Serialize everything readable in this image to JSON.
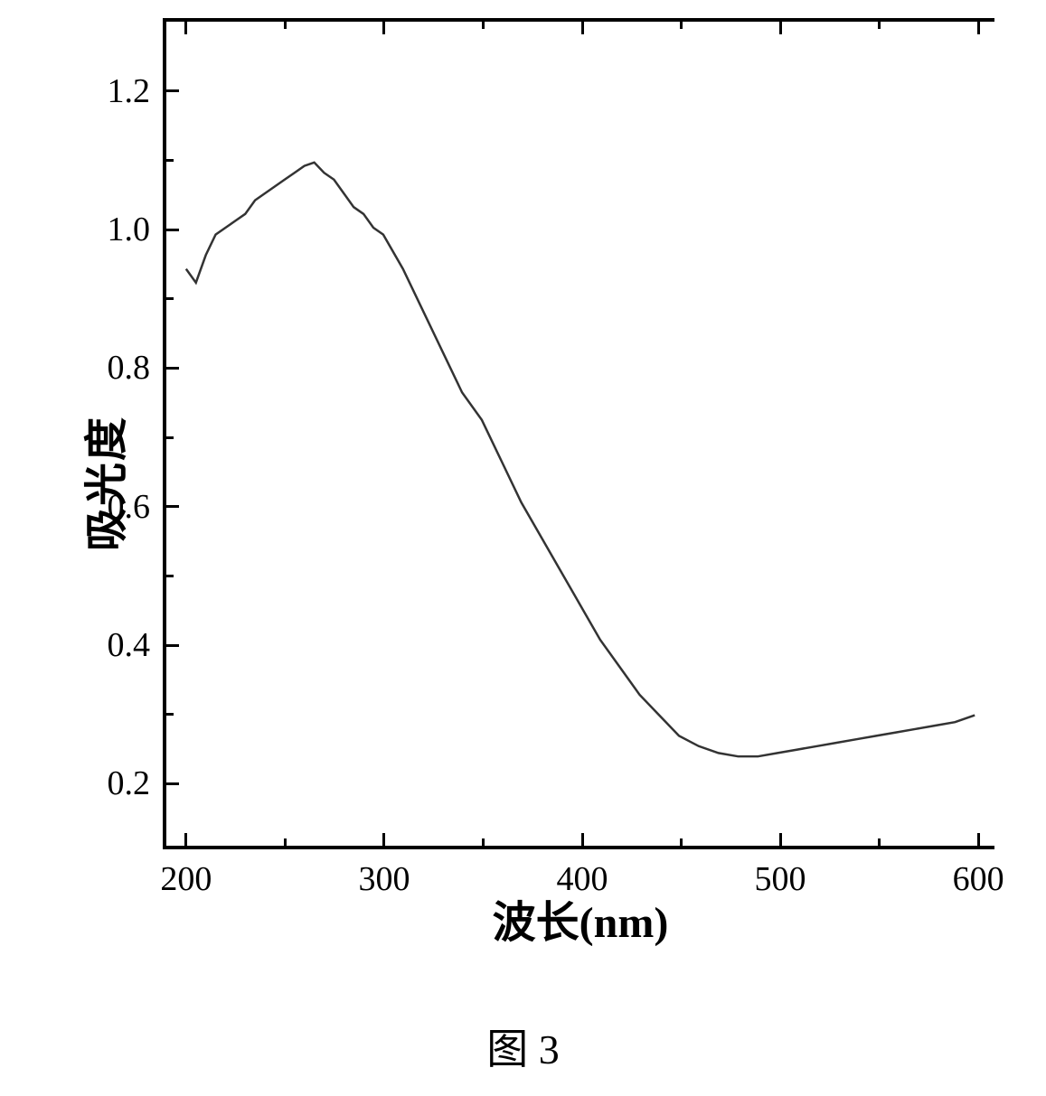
{
  "chart": {
    "type": "line",
    "xlabel": "波长(nm)",
    "ylabel": "吸光度",
    "caption": "图 3",
    "xlim": [
      190,
      610
    ],
    "ylim": [
      0.1,
      1.3
    ],
    "x_tick_major": [
      200,
      300,
      400,
      500,
      600
    ],
    "x_tick_major_labels": [
      "200",
      "300",
      "400",
      "500",
      "600"
    ],
    "x_tick_minor": [
      250,
      350,
      450,
      550
    ],
    "y_tick_major": [
      0.2,
      0.4,
      0.6,
      0.8,
      1.0,
      1.2
    ],
    "y_tick_major_labels": [
      "0.2",
      "0.4",
      "0.6",
      "0.8",
      "1.0",
      "1.2"
    ],
    "y_tick_minor": [
      0.3,
      0.5,
      0.7,
      0.9,
      1.1
    ],
    "line_color": "#333333",
    "line_width": 2.5,
    "background_color": "#ffffff",
    "axis_color": "#000000",
    "tick_fontsize": 38,
    "label_fontsize": 48,
    "caption_fontsize": 46,
    "series": [
      {
        "x": 200,
        "y": 0.94
      },
      {
        "x": 205,
        "y": 0.92
      },
      {
        "x": 210,
        "y": 0.96
      },
      {
        "x": 215,
        "y": 0.99
      },
      {
        "x": 220,
        "y": 1.0
      },
      {
        "x": 225,
        "y": 1.01
      },
      {
        "x": 230,
        "y": 1.02
      },
      {
        "x": 235,
        "y": 1.04
      },
      {
        "x": 240,
        "y": 1.05
      },
      {
        "x": 245,
        "y": 1.06
      },
      {
        "x": 250,
        "y": 1.07
      },
      {
        "x": 255,
        "y": 1.08
      },
      {
        "x": 260,
        "y": 1.09
      },
      {
        "x": 265,
        "y": 1.095
      },
      {
        "x": 270,
        "y": 1.08
      },
      {
        "x": 275,
        "y": 1.07
      },
      {
        "x": 280,
        "y": 1.05
      },
      {
        "x": 285,
        "y": 1.03
      },
      {
        "x": 290,
        "y": 1.02
      },
      {
        "x": 295,
        "y": 1.0
      },
      {
        "x": 300,
        "y": 0.99
      },
      {
        "x": 310,
        "y": 0.94
      },
      {
        "x": 320,
        "y": 0.88
      },
      {
        "x": 330,
        "y": 0.82
      },
      {
        "x": 340,
        "y": 0.76
      },
      {
        "x": 350,
        "y": 0.72
      },
      {
        "x": 360,
        "y": 0.66
      },
      {
        "x": 370,
        "y": 0.6
      },
      {
        "x": 380,
        "y": 0.55
      },
      {
        "x": 390,
        "y": 0.5
      },
      {
        "x": 400,
        "y": 0.45
      },
      {
        "x": 410,
        "y": 0.4
      },
      {
        "x": 420,
        "y": 0.36
      },
      {
        "x": 430,
        "y": 0.32
      },
      {
        "x": 440,
        "y": 0.29
      },
      {
        "x": 450,
        "y": 0.26
      },
      {
        "x": 460,
        "y": 0.245
      },
      {
        "x": 470,
        "y": 0.235
      },
      {
        "x": 480,
        "y": 0.23
      },
      {
        "x": 490,
        "y": 0.23
      },
      {
        "x": 500,
        "y": 0.235
      },
      {
        "x": 510,
        "y": 0.24
      },
      {
        "x": 520,
        "y": 0.245
      },
      {
        "x": 530,
        "y": 0.25
      },
      {
        "x": 540,
        "y": 0.255
      },
      {
        "x": 550,
        "y": 0.26
      },
      {
        "x": 560,
        "y": 0.265
      },
      {
        "x": 570,
        "y": 0.27
      },
      {
        "x": 580,
        "y": 0.275
      },
      {
        "x": 590,
        "y": 0.28
      },
      {
        "x": 600,
        "y": 0.29
      }
    ]
  }
}
